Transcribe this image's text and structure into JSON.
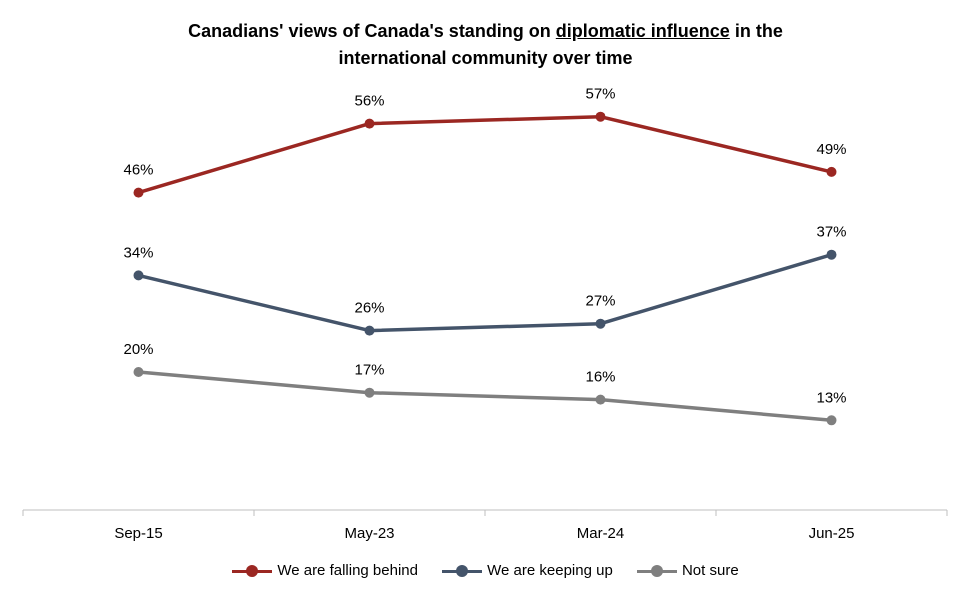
{
  "title": {
    "part1": "Canadians' views of Canada's  standing on ",
    "underlined": "diplomatic influence",
    "part2": " in the",
    "line2": "international community over time"
  },
  "chart_data": {
    "type": "line",
    "title": "Canadians' views of Canada's standing on diplomatic influence in the international community over time",
    "categories": [
      "Sep-15",
      "May-23",
      "Mar-24",
      "Jun-25"
    ],
    "ylim": [
      0,
      70
    ],
    "grid": false,
    "legend_position": "bottom",
    "series": [
      {
        "name": "We are falling behind",
        "color": "#9b2722",
        "values": [
          46,
          56,
          57,
          49
        ],
        "labels": [
          "46%",
          "56%",
          "57%",
          "49%"
        ]
      },
      {
        "name": "We are keeping up",
        "color": "#44546a",
        "values": [
          34,
          26,
          27,
          37
        ],
        "labels": [
          "34%",
          "26%",
          "27%",
          "37%"
        ]
      },
      {
        "name": "Not sure",
        "color": "#7f7f7f",
        "values": [
          20,
          17,
          16,
          13
        ],
        "labels": [
          "20%",
          "17%",
          "16%",
          "13%"
        ]
      }
    ]
  }
}
